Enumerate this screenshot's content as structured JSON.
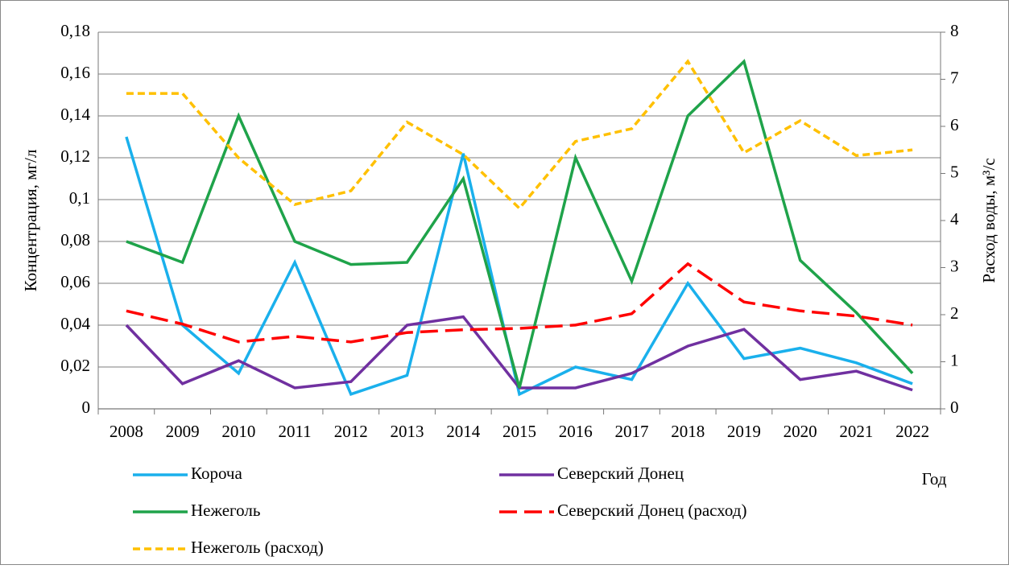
{
  "chart_data": {
    "type": "line",
    "x_label": "Год",
    "y_label": "Концентрация, мг/л",
    "y2_label": "Расход воды, м³/с",
    "categories": [
      "2008",
      "2009",
      "2010",
      "2011",
      "2012",
      "2013",
      "2014",
      "2015",
      "2016",
      "2017",
      "2018",
      "2019",
      "2020",
      "2021",
      "2022"
    ],
    "ylim": [
      0,
      0.18
    ],
    "yticks": [
      0,
      {
        "value": 0.02,
        "label": "0,02"
      },
      {
        "value": 0.04,
        "label": "0,04"
      },
      {
        "value": 0.06,
        "label": "0,06"
      },
      {
        "value": 0.08,
        "label": "0,08"
      },
      {
        "value": 0.1,
        "label": "0,1"
      },
      {
        "value": 0.12,
        "label": "0,12"
      },
      {
        "value": 0.14,
        "label": "0,14"
      },
      {
        "value": 0.16,
        "label": "0,16"
      },
      {
        "value": 0.18,
        "label": "0,18"
      }
    ],
    "y2lim": [
      0,
      8
    ],
    "y2ticks": [
      0,
      1,
      2,
      3,
      4,
      5,
      6,
      7,
      8
    ],
    "grid": true,
    "series": [
      {
        "name": "Короча",
        "color": "#1ab0ec",
        "line_style": "solid",
        "values": [
          0.13,
          0.04,
          0.017,
          0.07,
          0.007,
          0.016,
          0.122,
          0.007,
          0.02,
          0.014,
          0.06,
          0.024,
          0.029,
          0.022,
          0.012
        ]
      },
      {
        "name": "Северский Донец",
        "color": "#7030a0",
        "line_style": "solid",
        "values": [
          0.04,
          0.012,
          0.023,
          0.01,
          0.013,
          0.04,
          0.044,
          0.01,
          0.01,
          0.017,
          0.03,
          0.038,
          0.014,
          0.018,
          0.009
        ]
      },
      {
        "name": "Нежеголь",
        "color": "#1fa34a",
        "line_style": "solid",
        "values": [
          0.08,
          0.07,
          0.14,
          0.08,
          0.069,
          0.07,
          0.11,
          0.01,
          0.12,
          0.061,
          0.14,
          0.166,
          0.071,
          0.046,
          0.017
        ]
      },
      {
        "name": "Северский Донец (расход)",
        "color": "#ff0000",
        "line_style": "long-dash",
        "axis": "y2",
        "values": [
          2.08,
          1.8,
          1.42,
          1.54,
          1.42,
          1.62,
          1.68,
          1.71,
          1.78,
          2.02,
          3.08,
          2.27,
          2.08,
          1.97,
          1.78
        ]
      },
      {
        "name": "Нежеголь (расход)",
        "color": "#ffc000",
        "line_style": "short-dash",
        "axis": "y2",
        "values": [
          6.7,
          6.7,
          5.33,
          4.34,
          4.63,
          6.09,
          5.4,
          4.26,
          5.68,
          5.95,
          7.38,
          5.44,
          6.12,
          5.38,
          5.5
        ]
      }
    ]
  }
}
